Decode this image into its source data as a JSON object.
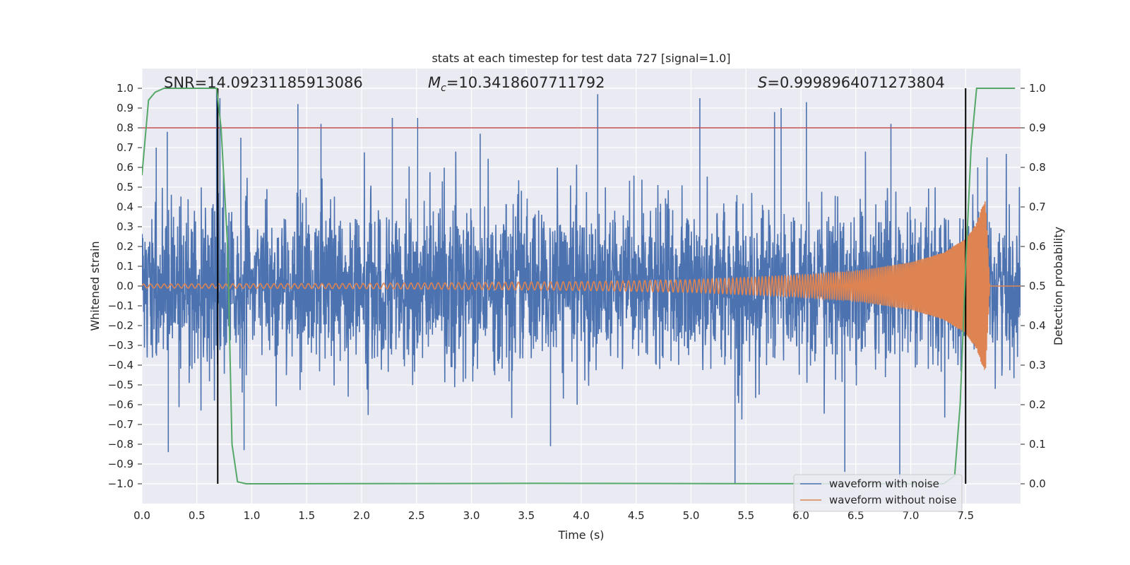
{
  "chart_data": {
    "type": "line",
    "title": "stats at each timestep for test data 727 [signal=1.0]",
    "xlabel": "Time (s)",
    "ylabel": "Whitened strain",
    "y2label": "Detection probability",
    "xlim": [
      0.0,
      8.0
    ],
    "ylim": [
      -1.1,
      1.1
    ],
    "y2lim": [
      -0.05,
      1.05
    ],
    "x_ticks": [
      0.0,
      0.5,
      1.0,
      1.5,
      2.0,
      2.5,
      3.0,
      3.5,
      4.0,
      4.5,
      5.0,
      5.5,
      6.0,
      6.5,
      7.0,
      7.5
    ],
    "x_tick_labels": [
      "0.0",
      "0.5",
      "1.0",
      "1.5",
      "2.0",
      "2.5",
      "3.0",
      "3.5",
      "4.0",
      "4.5",
      "5.0",
      "5.5",
      "6.0",
      "6.5",
      "7.0",
      "7.5"
    ],
    "y_ticks": [
      1.0,
      0.9,
      0.8,
      0.7,
      0.6,
      0.5,
      0.4,
      0.3,
      0.2,
      0.1,
      0.0,
      -0.1,
      -0.2,
      -0.3,
      -0.4,
      -0.5,
      -0.6,
      -0.7,
      -0.8,
      -0.9,
      -1.0
    ],
    "y_tick_labels": [
      "1.0",
      "0.9",
      "0.8",
      "0.7",
      "0.6",
      "0.5",
      "0.4",
      "0.3",
      "0.2",
      "0.1",
      "0.0",
      "−0.1",
      "−0.2",
      "−0.3",
      "−0.4",
      "−0.5",
      "−0.6",
      "−0.7",
      "−0.8",
      "−0.9",
      "−1.0"
    ],
    "y2_ticks": [
      1.0,
      0.9,
      0.8,
      0.7,
      0.6,
      0.5,
      0.4,
      0.3,
      0.2,
      0.1,
      0.0
    ],
    "y2_tick_labels": [
      "1.0",
      "0.9",
      "0.8",
      "0.7",
      "0.6",
      "0.5",
      "0.4",
      "0.3",
      "0.2",
      "0.1",
      "0.0"
    ],
    "annotations": {
      "snr": "SNR=14.09231185913086",
      "mc_symbol": "M",
      "mc_sub": "c",
      "mc_value": "=10.3418607711792",
      "s_symbol": "S",
      "s_value": "=0.9998964071273804"
    },
    "threshold": {
      "y2": 0.9,
      "color": "#c44e52"
    },
    "vlines": {
      "x": [
        0.69,
        7.5
      ],
      "y_range": [
        -1.0,
        1.0
      ],
      "color": "#000000"
    },
    "series": [
      {
        "name": "waveform with noise",
        "color": "#4c72b0",
        "axis": "left",
        "description": "noisy whitened strain, approx zero-mean with envelope around ±0.45 and spikes up to ±1.0",
        "t_range": [
          0.0,
          8.0
        ],
        "spikes": [
          {
            "t": 0.13,
            "y": 0.7
          },
          {
            "t": 0.23,
            "y": 0.78
          },
          {
            "t": 0.24,
            "y": -0.84
          },
          {
            "t": 0.68,
            "y": 1.0
          },
          {
            "t": 0.71,
            "y": 0.95
          },
          {
            "t": 0.9,
            "y": 0.75
          },
          {
            "t": 0.93,
            "y": -0.83
          },
          {
            "t": 1.42,
            "y": 0.92
          },
          {
            "t": 1.63,
            "y": 0.82
          },
          {
            "t": 2.28,
            "y": 0.85
          },
          {
            "t": 2.51,
            "y": 0.85
          },
          {
            "t": 3.08,
            "y": 0.77
          },
          {
            "t": 3.72,
            "y": -0.81
          },
          {
            "t": 4.15,
            "y": 0.97
          },
          {
            "t": 5.08,
            "y": 0.95
          },
          {
            "t": 5.4,
            "y": -1.0
          },
          {
            "t": 5.76,
            "y": 0.88
          },
          {
            "t": 5.82,
            "y": 0.9
          },
          {
            "t": 6.05,
            "y": 0.93
          },
          {
            "t": 6.4,
            "y": -0.94
          },
          {
            "t": 6.82,
            "y": 0.82
          },
          {
            "t": 6.9,
            "y": -0.97
          },
          {
            "t": 7.61,
            "y": 0.6
          }
        ]
      },
      {
        "name": "waveform without noise",
        "color": "#dd8452",
        "axis": "left",
        "description": "chirp waveform: amplitude ~0.01 at t=0 growing to ~0.48 near t=7.7, frequency increasing over time, merging near t=7.7",
        "merger_t": 7.72,
        "amplitude_at": [
          {
            "t": 0.0,
            "a": 0.01
          },
          {
            "t": 2.0,
            "a": 0.013
          },
          {
            "t": 4.0,
            "a": 0.022
          },
          {
            "t": 5.0,
            "a": 0.032
          },
          {
            "t": 6.0,
            "a": 0.055
          },
          {
            "t": 6.5,
            "a": 0.075
          },
          {
            "t": 7.0,
            "a": 0.12
          },
          {
            "t": 7.3,
            "a": 0.17
          },
          {
            "t": 7.5,
            "a": 0.24
          },
          {
            "t": 7.6,
            "a": 0.32
          },
          {
            "t": 7.68,
            "a": 0.45
          },
          {
            "t": 7.72,
            "a": 0.0
          }
        ],
        "cycles_per_second_at_start": 16,
        "cycles_per_second_near_merger": 120
      },
      {
        "name": "detection probability",
        "color": "#55a868",
        "axis": "right",
        "x": [
          0.0,
          0.06,
          0.12,
          0.2,
          0.5,
          0.68,
          0.72,
          0.78,
          0.82,
          0.87,
          0.95,
          1.2,
          3.5,
          7.0,
          7.3,
          7.4,
          7.45,
          7.5,
          7.55,
          7.6,
          7.65,
          7.95
        ],
        "y": [
          0.78,
          0.97,
          0.99,
          1.0,
          1.0,
          1.0,
          0.9,
          0.6,
          0.1,
          0.005,
          0.0,
          0.0,
          0.001,
          0.0,
          0.0,
          0.02,
          0.2,
          0.55,
          0.85,
          1.0,
          1.0,
          1.0
        ]
      }
    ],
    "legend": {
      "position": "lower-right",
      "entries": [
        {
          "label": "waveform with noise",
          "color": "#4c72b0"
        },
        {
          "label": "waveform without noise",
          "color": "#dd8452"
        }
      ]
    }
  }
}
